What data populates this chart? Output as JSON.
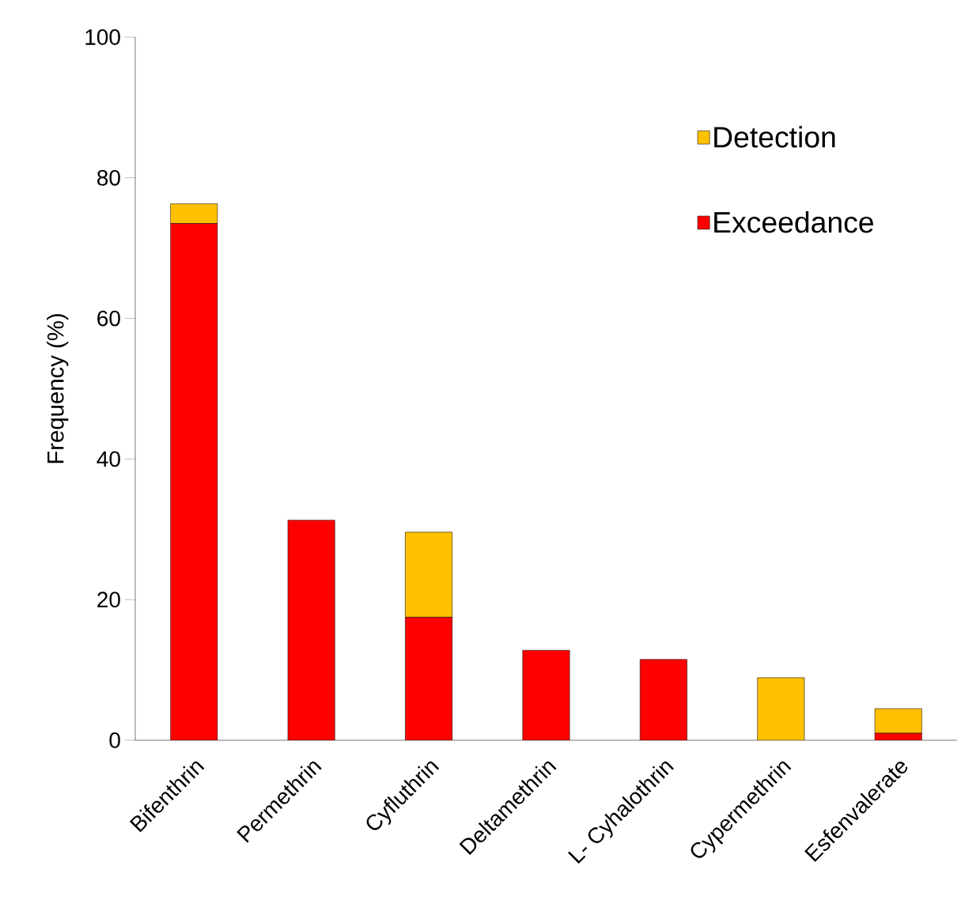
{
  "chart_data": {
    "type": "bar",
    "stacked": true,
    "ylabel": "Frequency (%)",
    "categories": [
      "Bifenthrin",
      "Permethrin",
      "Cyfluthrin",
      "Deltamethrin",
      "L- Cyhalothrin",
      "Cypermethrin",
      "Esfenvalerate"
    ],
    "series": [
      {
        "name": "Exceedance",
        "color": "#ff0000",
        "values": [
          73.5,
          31.3,
          17.5,
          12.8,
          11.5,
          0,
          1.0
        ]
      },
      {
        "name": "Detection",
        "color": "#ffc000",
        "values": [
          2.8,
          0,
          12.1,
          0,
          0,
          8.9,
          3.5
        ]
      }
    ],
    "ylim": [
      0,
      100
    ],
    "yticks": [
      0,
      20,
      40,
      60,
      80,
      100
    ],
    "grid": false,
    "legend": "top right"
  }
}
